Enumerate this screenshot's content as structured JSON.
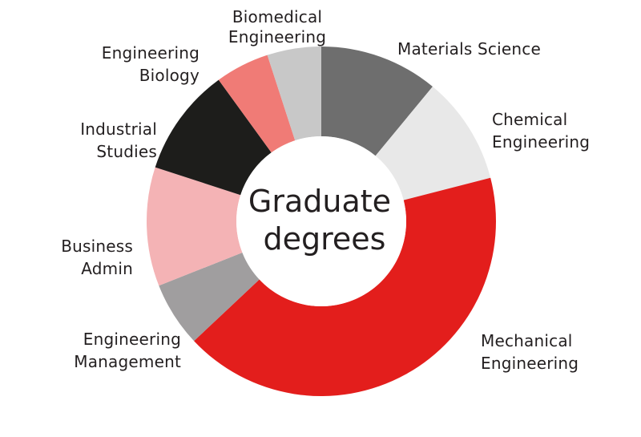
{
  "chart_data": {
    "type": "pie",
    "variant": "donut",
    "title": "Graduate degrees",
    "center_label_lines": [
      "Graduate",
      "degrees"
    ],
    "start_angle_deg": 0,
    "direction": "clockwise",
    "slices": [
      {
        "label": "Materials Science",
        "label_lines": [
          "Materials Science"
        ],
        "value": 11,
        "color": "#6e6e6e"
      },
      {
        "label": "Chemical Engineering",
        "label_lines": [
          "Chemical",
          "Engineering"
        ],
        "value": 10,
        "color": "#e8e8e8"
      },
      {
        "label": "Mechanical Engineering",
        "label_lines": [
          "Mechanical",
          "Engineering"
        ],
        "value": 42,
        "color": "#e31e1c"
      },
      {
        "label": "Engineering Management",
        "label_lines": [
          "Engineering",
          "Management"
        ],
        "value": 6,
        "color": "#a09e9f"
      },
      {
        "label": "Business Admin",
        "label_lines": [
          "Business",
          "Admin"
        ],
        "value": 11,
        "color": "#f4b3b5"
      },
      {
        "label": "Industrial Studies",
        "label_lines": [
          "Industrial",
          "Studies"
        ],
        "value": 10,
        "color": "#1d1d1b"
      },
      {
        "label": "Engineering Biology",
        "label_lines": [
          "Engineering",
          "Biology"
        ],
        "value": 5,
        "color": "#f07b76"
      },
      {
        "label": "Biomedical Engineering",
        "label_lines": [
          "Biomedical",
          "Engineering"
        ],
        "value": 5,
        "color": "#c8c8c8"
      }
    ]
  }
}
